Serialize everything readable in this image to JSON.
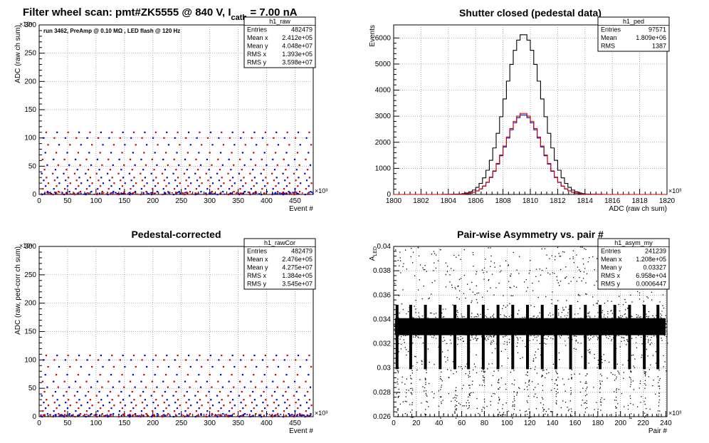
{
  "figure": {
    "title_parts": [
      "Filter wheel scan: pmt#ZK5555 @   840 V, I",
      "cath",
      " = 7.00 nA"
    ]
  },
  "chart_data": [
    {
      "id": "raw",
      "type": "scatter",
      "title": "",
      "annotation": "run 3462, PreAmp @ 0.10 MΩ , LED flash @  120 Hz",
      "xlabel": "Event #",
      "ylabel": "ADC (raw ch sum)",
      "x_multiplier": "×10³",
      "y_multiplier": "×10⁶",
      "xlim": [
        0,
        482
      ],
      "ylim": [
        0,
        300
      ],
      "xticks": [
        0,
        50,
        100,
        150,
        200,
        250,
        300,
        350,
        400,
        450
      ],
      "yticks": [
        0,
        50,
        100,
        150,
        200,
        250,
        300
      ],
      "grid": true,
      "levels": [
        0,
        2,
        5,
        10,
        15,
        20,
        25,
        30,
        37,
        44,
        52,
        62,
        74,
        88,
        100,
        110
      ],
      "n_groups": 25,
      "series_colors": [
        "#0000cc",
        "#cc0000"
      ],
      "stats": {
        "name": "h1_raw",
        "rows": [
          [
            "Entries",
            "482479"
          ],
          [
            "Mean x",
            "2.412e+05"
          ],
          [
            "Mean y",
            "4.048e+07"
          ],
          [
            "RMS x",
            "1.393e+05"
          ],
          [
            "RMS y",
            "3.598e+07"
          ]
        ]
      }
    },
    {
      "id": "ped",
      "type": "line",
      "title": "Shutter closed (pedestal data)",
      "xlabel": "ADC (raw ch sum)",
      "ylabel": "Events",
      "x_multiplier": "×10³",
      "xlim": [
        1800,
        1820
      ],
      "ylim": [
        0,
        6500
      ],
      "xticks": [
        1800,
        1802,
        1804,
        1806,
        1808,
        1810,
        1812,
        1814,
        1816,
        1818,
        1820
      ],
      "yticks": [
        0,
        1000,
        2000,
        3000,
        4000,
        5000,
        6000
      ],
      "grid": true,
      "series": [
        {
          "color": "#000000",
          "mean": 1809.5,
          "sigma": 1.35,
          "peak": 6150
        },
        {
          "color": "#0000cc",
          "mean": 1809.5,
          "sigma": 1.35,
          "peak": 3060
        },
        {
          "color": "#cc0000",
          "mean": 1809.5,
          "sigma": 1.35,
          "peak": 3120
        }
      ],
      "stats": {
        "name": "h1_ped",
        "rows": [
          [
            "Entries",
            "97571"
          ],
          [
            "Mean",
            "1.809e+06"
          ],
          [
            "RMS",
            "1387"
          ]
        ]
      }
    },
    {
      "id": "rawCor",
      "type": "scatter",
      "title": "Pedestal-corrected",
      "xlabel": "Event #",
      "ylabel": "ADC (raw, ped-corr ch sum)",
      "x_multiplier": "×10³",
      "y_multiplier": "×10⁶",
      "xlim": [
        0,
        482
      ],
      "ylim": [
        0,
        300
      ],
      "xticks": [
        0,
        50,
        100,
        150,
        200,
        250,
        300,
        350,
        400,
        450
      ],
      "yticks": [
        0,
        50,
        100,
        150,
        200,
        250,
        300
      ],
      "grid": true,
      "levels": [
        0,
        2,
        5,
        10,
        15,
        20,
        25,
        30,
        37,
        44,
        52,
        62,
        74,
        88,
        100,
        108
      ],
      "n_groups": 25,
      "series_colors": [
        "#0000cc",
        "#cc0000"
      ],
      "stats": {
        "name": "h1_rawCor",
        "rows": [
          [
            "Entries",
            "482479"
          ],
          [
            "Mean x",
            "2.476e+05"
          ],
          [
            "Mean y",
            "4.275e+07"
          ],
          [
            "RMS x",
            "1.384e+05"
          ],
          [
            "RMS y",
            "3.545e+07"
          ]
        ]
      }
    },
    {
      "id": "asym",
      "type": "scatter",
      "title": "Pair-wise Asymmetry vs. pair #",
      "xlabel": "Pair #",
      "ylabel": "A_LED",
      "x_multiplier": "×10³",
      "xlim": [
        0,
        241
      ],
      "ylim": [
        0.026,
        0.04
      ],
      "xticks": [
        0,
        20,
        40,
        60,
        80,
        100,
        120,
        140,
        160,
        180,
        200,
        220,
        240
      ],
      "yticks": [
        0.026,
        0.028,
        0.03,
        0.032,
        0.034,
        0.036,
        0.038,
        0.04
      ],
      "ytick_labels": [
        "0.026",
        "0.028",
        "0.03",
        "0.032",
        "0.034",
        "0.036",
        "0.038",
        "0.04"
      ],
      "grid": true,
      "band_center": 0.0334,
      "band_halfwidth": 0.0007,
      "spike_x": [
        3,
        15,
        28,
        41,
        54,
        66,
        79,
        92,
        105,
        118,
        131,
        143,
        156,
        169,
        182,
        195,
        208,
        221,
        233
      ],
      "stats": {
        "name": "h1_asym_my",
        "rows": [
          [
            "Entries",
            "241239"
          ],
          [
            "Mean x",
            "1.208e+05"
          ],
          [
            "Mean y",
            "0.03327"
          ],
          [
            "RMS x",
            "6.958e+04"
          ],
          [
            "RMS y",
            "0.0006447"
          ]
        ]
      }
    }
  ]
}
